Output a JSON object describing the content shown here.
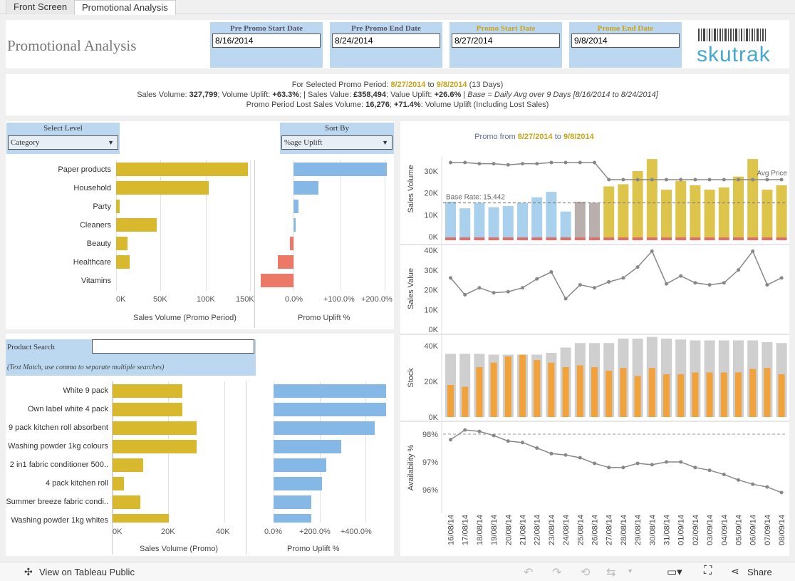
{
  "tabs": [
    "Front Screen",
    "Promotional Analysis"
  ],
  "title": "Promotional Analysis",
  "dates": [
    {
      "label": "Pre  Promo  Start  Date",
      "value": "8/16/2014"
    },
    {
      "label": "Pre  Promo  End  Date",
      "value": "8/24/2014"
    },
    {
      "label": "Promo  Start  Date",
      "value": "8/27/2014"
    },
    {
      "label": "Promo  End  Date",
      "value": "9/8/2014"
    }
  ],
  "logo": {
    "text": "skutrak"
  },
  "summary": {
    "l1a": "For Selected Promo Period: ",
    "l1b": "8/27/2014",
    "l1c": " to ",
    "l1d": "9/8/2014",
    "l1e": " (13 Days)",
    "l2a": "Sales Volume: ",
    "l2b": "327,799",
    "l2c": "; Volume Uplift: ",
    "l2d": "+63.3%",
    "l2e": ";  |  Sales Value: ",
    "l2f": "£358,494",
    "l2g": "; Value Uplift: ",
    "l2h": "+26.6%",
    "l2i": "  |  ",
    "l2j": "Base = Daily Avg over 9 Days [8/16/2014 to 8/24/2014]",
    "l3a": "Promo Period Lost Sales Volume: ",
    "l3b": "16,276",
    "l3c": "; ",
    "l3d": "+71.4%",
    "l3e": ": Volume Uplift (Including Lost Sales)"
  },
  "level": {
    "label": "Select Level",
    "value": "Category"
  },
  "sort": {
    "label": "Sort By",
    "value": "%age Uplift"
  },
  "category_chart": {
    "categories": [
      "Paper products",
      "Household",
      "Party",
      "Cleaners",
      "Beauty",
      "Healthcare",
      "Vitamins"
    ],
    "sales_volume": [
      147000,
      103000,
      4000,
      45000,
      13000,
      15000,
      0
    ],
    "uplift_pct": [
      215,
      58,
      12,
      5,
      -8,
      -36,
      -75
    ],
    "x1_ticks": [
      "0K",
      "50K",
      "100K",
      "150K"
    ],
    "x2_ticks": [
      "0.0%",
      "+100.0%",
      "+200.0%"
    ],
    "x1_title": "Sales Volume (Promo Period)",
    "x2_title": "Promo Uplift %"
  },
  "search": {
    "label": "Product Search",
    "hint": "(Text Match, use comma to separate multiple searches)"
  },
  "product_chart": {
    "products": [
      "White 9 pack",
      "Own label white 4 pack",
      "9 pack kitchen roll absorbent",
      "Washing powder 1kg colours",
      "2 in1 fabric conditioner 500..",
      "4 pack kitchen roll",
      "Summer breeze fabric condi..",
      "Washing powder 1kg whites"
    ],
    "sales_volume": [
      25000,
      25000,
      30000,
      30000,
      11000,
      4000,
      10000,
      20000
    ],
    "uplift_pct": [
      490,
      490,
      440,
      295,
      230,
      210,
      165,
      165
    ],
    "x1_ticks": [
      "0K",
      "20K",
      "40K"
    ],
    "x2_ticks": [
      "0.0%",
      "+200.0%",
      "+400.0%"
    ],
    "x1_title": "Sales Volume (Promo)",
    "x2_title": "Promo Uplift %"
  },
  "right": {
    "title_a": "Promo from ",
    "title_b": "8/27/2014",
    "title_c": " to ",
    "title_d": "9/8/2014",
    "base_rate": "Base Rate: 15,442",
    "avg_price": "Avg Price",
    "ylabels": [
      "Sales Volume",
      "Sales Value",
      "Stock",
      "Availability %"
    ],
    "sv_ticks": [
      "30K",
      "20K",
      "10K",
      "0K"
    ],
    "val_ticks": [
      "40K",
      "30K",
      "20K",
      "10K",
      "0K"
    ],
    "stock_ticks": [
      "40K",
      "20K",
      "0K"
    ],
    "avail_ticks": [
      "98%",
      "97%",
      "96%"
    ],
    "dates": [
      "16/08/14",
      "17/08/14",
      "18/08/14",
      "19/08/14",
      "20/08/14",
      "21/08/14",
      "22/08/14",
      "23/08/14",
      "24/08/14",
      "25/08/14",
      "26/08/14",
      "27/08/14",
      "28/08/14",
      "29/08/14",
      "30/08/14",
      "31/08/14",
      "01/09/14",
      "02/09/14",
      "03/09/14",
      "04/09/14",
      "05/09/14",
      "06/09/14",
      "07/09/14",
      "08/09/14"
    ],
    "sales_volume": [
      16000,
      13000,
      15500,
      13500,
      14000,
      15500,
      18000,
      20500,
      11500,
      16000,
      15500,
      23000,
      24000,
      30000,
      35500,
      21500,
      25500,
      23500,
      21500,
      22500,
      27500,
      35500,
      21500,
      23500
    ],
    "price": [
      34000,
      34000,
      33500,
      33500,
      33000,
      33500,
      33500,
      34000,
      34000,
      34000,
      34000,
      26500,
      26500,
      26500,
      26500,
      26500,
      26500,
      26500,
      26500,
      26500,
      26500,
      26500,
      26500,
      26500
    ],
    "sales_value": [
      26000,
      17500,
      21000,
      18500,
      19000,
      21000,
      25500,
      29000,
      15500,
      22500,
      21000,
      24000,
      26000,
      31500,
      39500,
      23000,
      27000,
      23500,
      22500,
      23500,
      30000,
      39500,
      22500,
      26000
    ],
    "stock_total": [
      35500,
      35500,
      35500,
      35000,
      35000,
      35000,
      35000,
      36000,
      39000,
      41500,
      41500,
      41500,
      44000,
      44000,
      45000,
      44000,
      43500,
      43000,
      43000,
      43000,
      43000,
      43000,
      42000,
      41500
    ],
    "stock_orange": [
      18000,
      17000,
      28000,
      30500,
      34000,
      35000,
      32000,
      30500,
      28000,
      29000,
      28000,
      26000,
      27500,
      23000,
      27500,
      24000,
      24000,
      25000,
      25000,
      25000,
      25000,
      27000,
      27500,
      24000
    ],
    "availability": [
      97.8,
      98.15,
      98.1,
      97.95,
      97.75,
      97.7,
      97.5,
      97.3,
      97.25,
      97.15,
      96.95,
      96.8,
      96.8,
      96.95,
      96.9,
      97.0,
      97.0,
      96.8,
      96.7,
      96.55,
      96.35,
      96.2,
      96.1,
      95.9
    ],
    "colors": {
      "pre": "#a9d0ec",
      "gap": "#b9b0ae",
      "promo": "#dcc54a",
      "lost": "#e0706a",
      "line": "#888888",
      "stock_bg": "#cfcfcf",
      "stock_fg": "#f2a23a"
    }
  },
  "footer": {
    "view": "View on Tableau Public",
    "share": "Share"
  }
}
